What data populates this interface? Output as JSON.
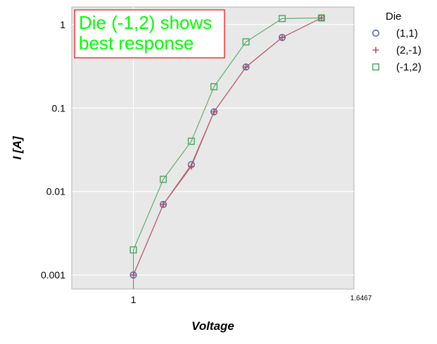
{
  "chart_data": {
    "type": "line",
    "x": [
      1.0,
      1.07,
      1.14,
      1.2,
      1.29,
      1.4,
      1.53
    ],
    "series": [
      {
        "name": "(1,1)",
        "marker": "circle",
        "color": "#4c72b0",
        "line_color": "#b05a68",
        "values": [
          0.001,
          0.007,
          0.021,
          0.09,
          0.31,
          0.7,
          1.2
        ]
      },
      {
        "name": "(2,-1)",
        "marker": "plus",
        "color": "#c44e52",
        "line_color": "#b05a68",
        "values": [
          0.001,
          0.007,
          0.02,
          0.09,
          0.31,
          0.7,
          1.2
        ]
      },
      {
        "name": "(-1,2)",
        "marker": "square",
        "color": "#55a868",
        "line_color": "#55a868",
        "values": [
          0.002,
          0.014,
          0.04,
          0.18,
          0.62,
          1.18,
          1.2
        ]
      }
    ],
    "xscale": "log",
    "yscale": "log",
    "xlim": [
      0.87,
      1.6467
    ],
    "ylim": [
      0.00068,
      1.62
    ],
    "xticks": [
      {
        "value": 1,
        "label": "1"
      }
    ],
    "xtick_extra": {
      "value": 1.6467,
      "label": "1.6467"
    },
    "yticks": [
      {
        "value": 0.001,
        "label": "0.001"
      },
      {
        "value": 0.01,
        "label": "0.01"
      },
      {
        "value": 0.1,
        "label": "0.1"
      },
      {
        "value": 1,
        "label": "1"
      }
    ],
    "xlabel": "Voltage",
    "ylabel": "I [A]",
    "grid": true,
    "legend": {
      "title": "Die",
      "placement": "outside-right-top"
    },
    "annotation": {
      "lines": [
        "Die (-1,2) shows",
        "best response"
      ],
      "text_color": "#00ff00",
      "border_color": "#ff0000"
    }
  }
}
